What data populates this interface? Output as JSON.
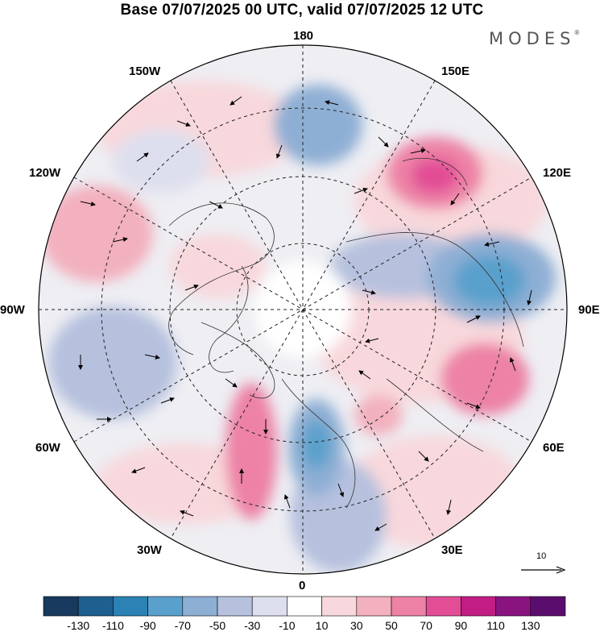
{
  "title": "Base 07/07/2025 00 UTC, valid 07/07/2025 12 UTC",
  "brand": {
    "name": "MODES",
    "mark": "®"
  },
  "map": {
    "projection": "north-polar-stereographic",
    "longitude_labels": {
      "top": "180",
      "upper_right": "150E",
      "right_upper": "120E",
      "right": "90E",
      "right_lower": "60E",
      "lower_right": "30E",
      "bottom": "0",
      "lower_left": "30W",
      "left_lower": "60W",
      "left": "90W",
      "left_upper": "120W",
      "upper_left": "150W"
    },
    "graticule": "dashed"
  },
  "reference_vector": {
    "label": "10"
  },
  "colorbar": {
    "labels": [
      "-130",
      "-110",
      "-90",
      "-70",
      "-50",
      "-30",
      "-10",
      "10",
      "30",
      "50",
      "70",
      "90",
      "110",
      "130"
    ],
    "colors": [
      "#173a5e",
      "#1f5f8f",
      "#2c82b5",
      "#5aa0cc",
      "#8eafd4",
      "#b6c1de",
      "#dedfee",
      "#ffffff",
      "#f8d8dc",
      "#f3b0be",
      "#ed82a6",
      "#e24d96",
      "#c21d84",
      "#891480",
      "#5b0d6d"
    ]
  },
  "anomaly_centers": [
    {
      "color": "#8eafd4",
      "strength": "-50"
    },
    {
      "color": "#5aa0cc",
      "strength": "-90"
    },
    {
      "color": "#5aa0cc",
      "strength": "-70"
    },
    {
      "color": "#e24d96",
      "strength": "70"
    },
    {
      "color": "#ed82a6",
      "strength": "70"
    },
    {
      "color": "#ed82a6",
      "strength": "70"
    },
    {
      "color": "#f3b0be",
      "strength": "50"
    }
  ]
}
